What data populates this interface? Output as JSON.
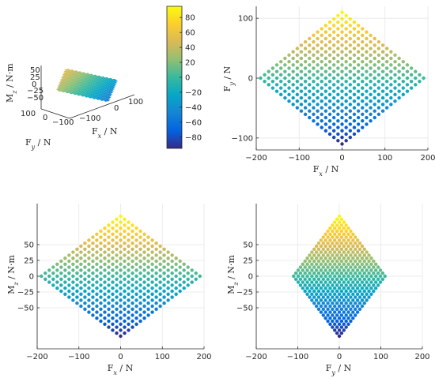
{
  "chart_data": [
    {
      "id": "surface3d",
      "type": "scatter",
      "title": "",
      "xlabel": "F_x / N",
      "ylabel": "F_y / N",
      "zlabel": "M_z / N·m",
      "x_ticks": [
        "100",
        "0",
        "−100"
      ],
      "y_ticks": [
        "100",
        "0",
        "−100"
      ],
      "z_ticks": [
        "50",
        "25",
        "0",
        "−25",
        "−50"
      ],
      "xlim": [
        -190,
        190
      ],
      "ylim": [
        -110,
        110
      ],
      "zlim": [
        -95,
        95
      ],
      "description_note": ""
    },
    {
      "id": "colorbar",
      "type": "heatmap",
      "colormap": "parula",
      "clim": [
        -95,
        95
      ],
      "ticks": [
        "80",
        "60",
        "40",
        "20",
        "0",
        "−20",
        "−40",
        "−60",
        "−80"
      ]
    },
    {
      "id": "fx-fy",
      "type": "scatter",
      "xlabel": "F_x / N",
      "ylabel": "F_y / N",
      "xlim": [
        -200,
        200
      ],
      "ylim": [
        -120,
        120
      ],
      "x_ticks": [
        "−200",
        "−100",
        "0",
        "100",
        "200"
      ],
      "y_ticks": [
        "100",
        "0",
        "−100"
      ],
      "grid": true,
      "shape": {
        "x_half_range": 190,
        "y_half_range": 110,
        "z_half_range": 95,
        "steps": 20
      }
    },
    {
      "id": "fx-mz",
      "type": "scatter",
      "xlabel": "F_x / N",
      "ylabel": "M_z / N·m",
      "xlim": [
        -200,
        200
      ],
      "ylim": [
        -95,
        95
      ],
      "x_ticks": [
        "−200",
        "−100",
        "0",
        "100",
        "200"
      ],
      "y_ticks": [
        "50",
        "25",
        "0",
        "−25",
        "−50"
      ],
      "grid": true,
      "shape": {
        "x_half_range": 190,
        "y_half_range": 95,
        "steps": 20
      }
    },
    {
      "id": "fy-mz",
      "type": "scatter",
      "xlabel": "F_y / N",
      "ylabel": "M_z / N·m",
      "xlim": [
        -200,
        200
      ],
      "ylim": [
        -95,
        95
      ],
      "x_ticks": [
        "−200",
        "−100",
        "0",
        "100",
        "200"
      ],
      "y_ticks": [
        "50",
        "25",
        "0",
        "−25",
        "−50"
      ],
      "grid": true,
      "shape": {
        "x_half_range": 110,
        "y_half_range": 95,
        "steps": 20
      }
    }
  ]
}
